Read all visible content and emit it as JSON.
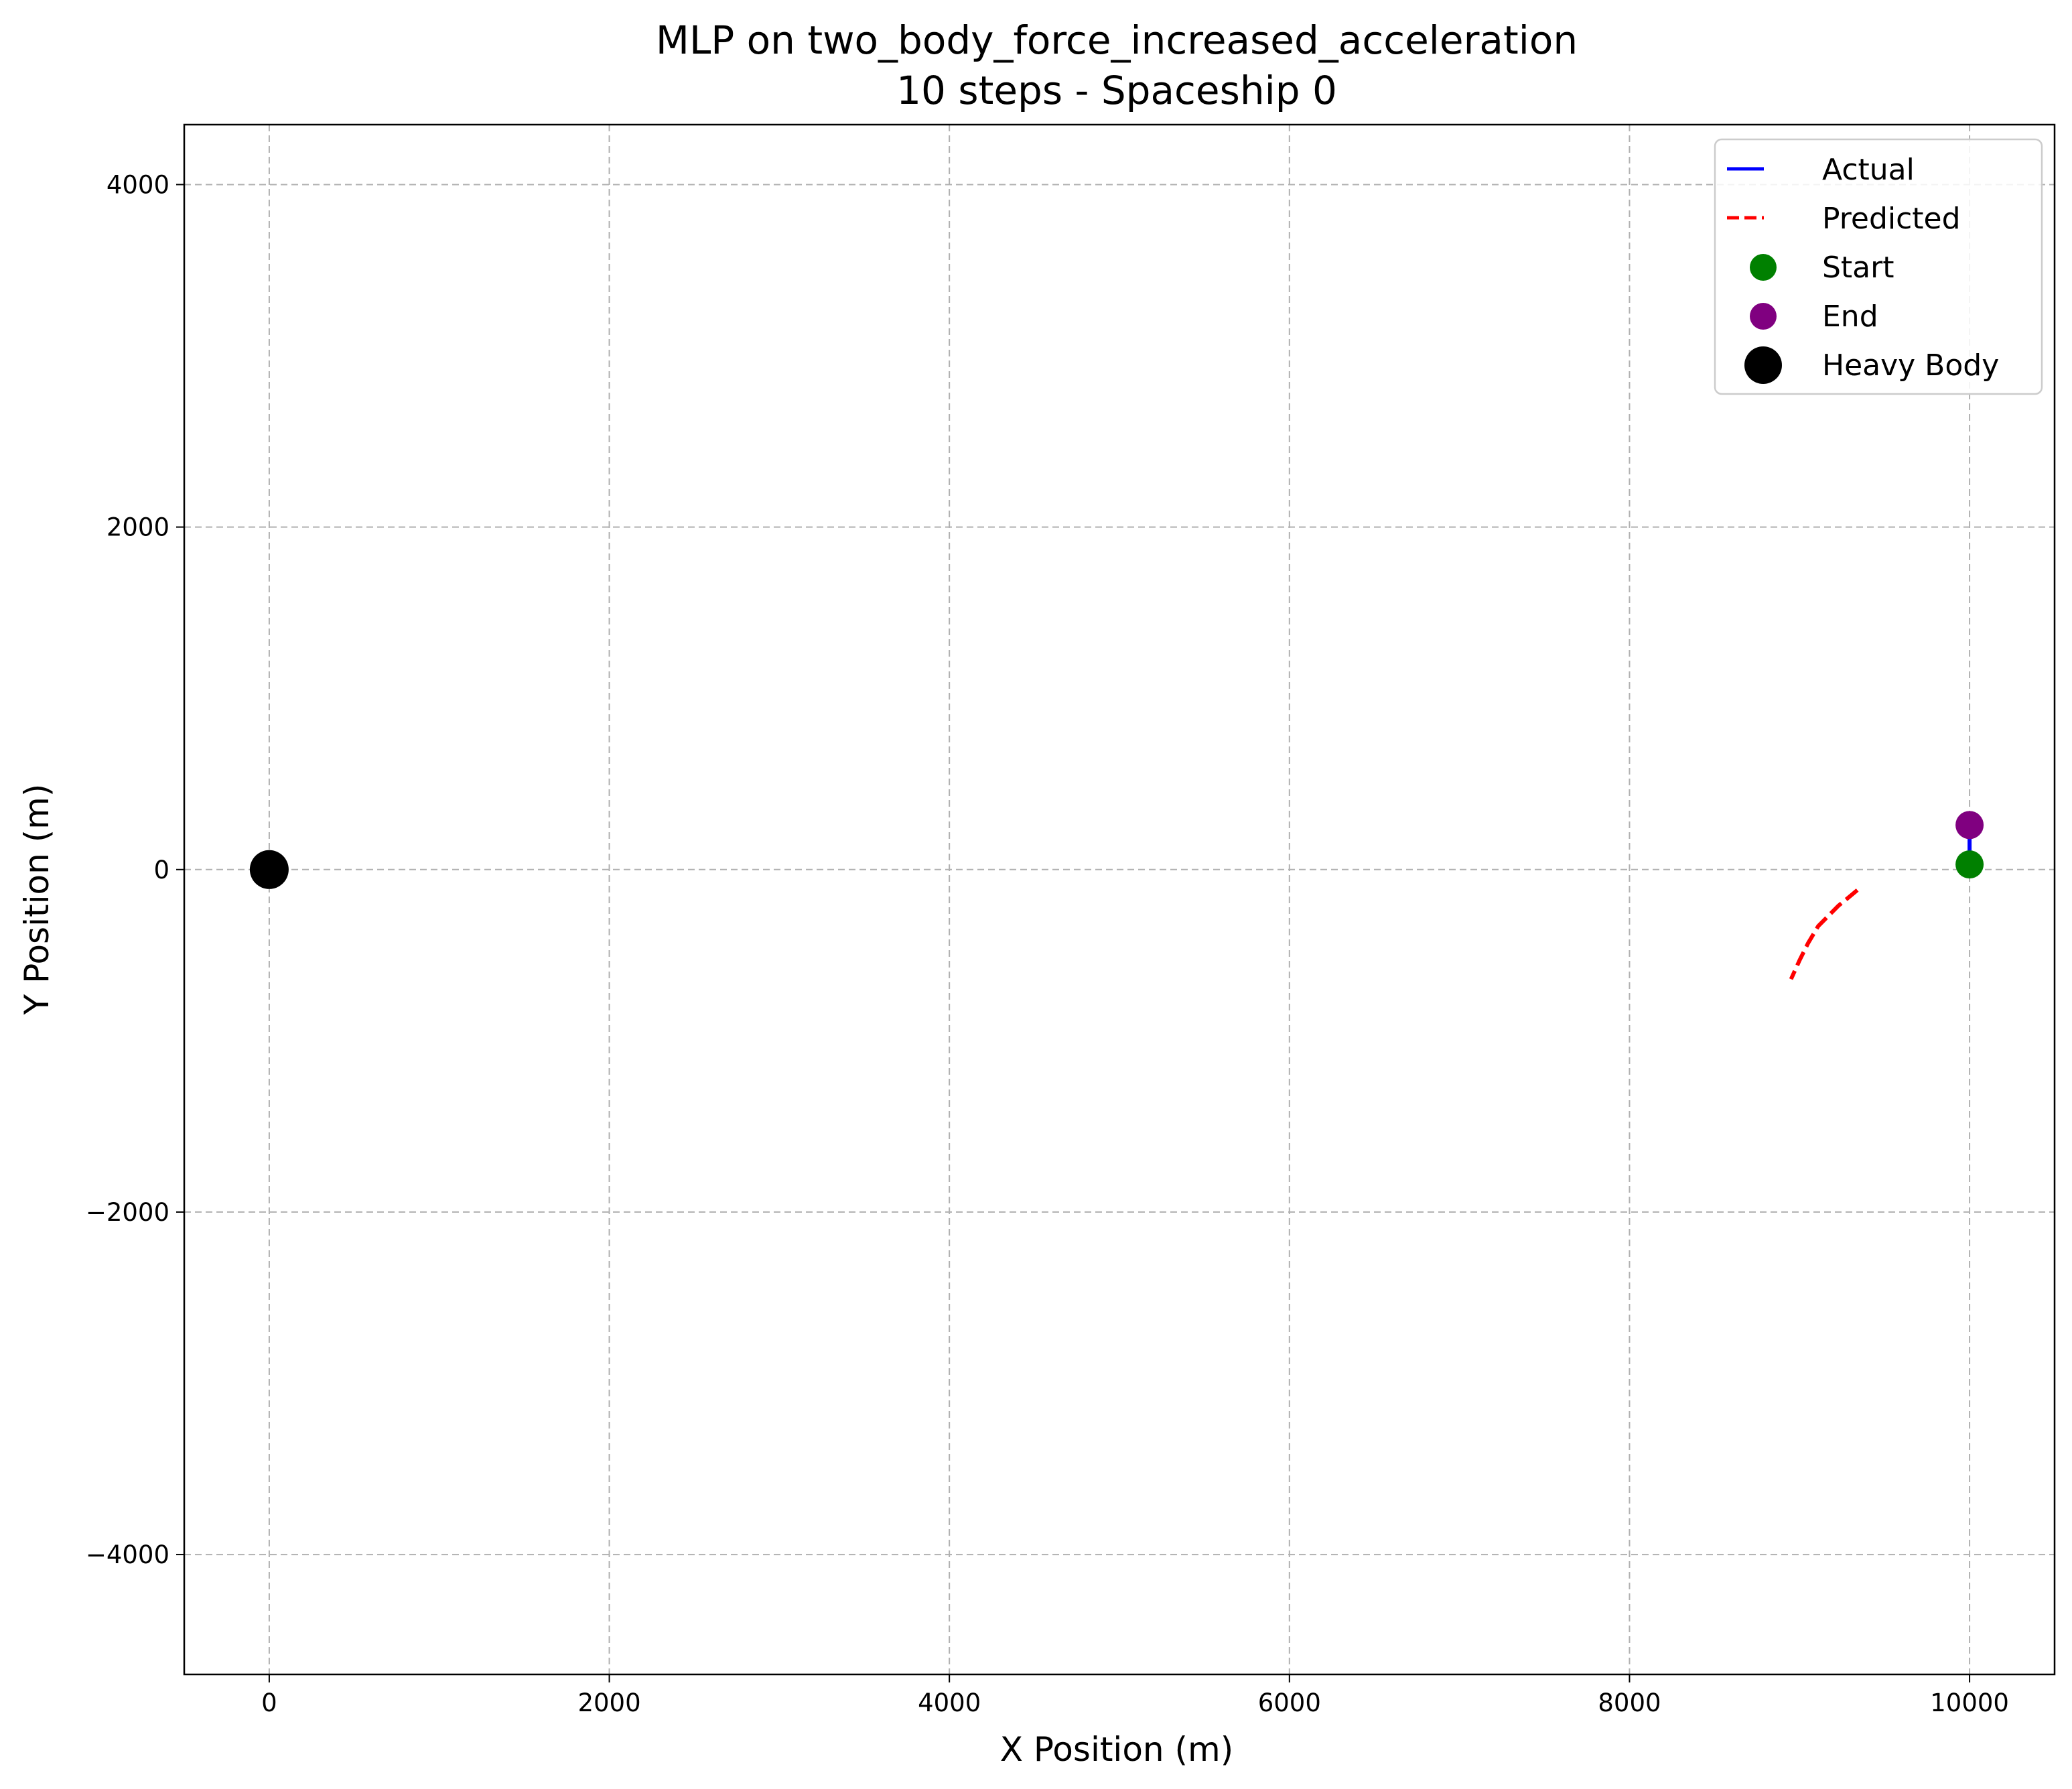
{
  "chart_data": {
    "type": "line",
    "title": "MLP on two_body_force_increased_acceleration",
    "subtitle": "10 steps - Spaceship 0",
    "xlabel": "X Position (m)",
    "ylabel": "Y Position (m)",
    "xlim": [
      -500,
      10500
    ],
    "ylim": [
      -4700,
      4350
    ],
    "xticks": [
      0,
      2000,
      4000,
      6000,
      8000,
      10000
    ],
    "yticks": [
      -4000,
      -2000,
      0,
      2000,
      4000
    ],
    "xtick_labels": [
      "0",
      "2000",
      "4000",
      "6000",
      "8000",
      "10000"
    ],
    "ytick_labels": [
      "−4000",
      "−2000",
      "0",
      "2000",
      "4000"
    ],
    "grid": true,
    "legend_position": "top-right",
    "series": [
      {
        "name": "Actual",
        "color": "#0000ff",
        "style": "solid",
        "x": [
          10000,
          10000,
          10000,
          10000,
          10000,
          10000,
          10000,
          10000,
          10000,
          10000,
          10000
        ],
        "y": [
          30,
          53,
          76,
          99,
          122,
          145,
          168,
          191,
          214,
          237,
          260
        ]
      },
      {
        "name": "Predicted",
        "color": "#ff0000",
        "style": "dashed",
        "x": [
          9340,
          9280,
          9230,
          9170,
          9110,
          9050,
          9000,
          8950
        ],
        "y": [
          -120,
          -170,
          -210,
          -270,
          -330,
          -430,
          -530,
          -640
        ]
      }
    ],
    "markers": [
      {
        "name": "Start",
        "color": "#008000",
        "x": 10000,
        "y": 30
      },
      {
        "name": "End",
        "color": "#800080",
        "x": 10000,
        "y": 260
      },
      {
        "name": "Heavy Body",
        "color": "#000000",
        "x": 0,
        "y": 0
      }
    ]
  }
}
